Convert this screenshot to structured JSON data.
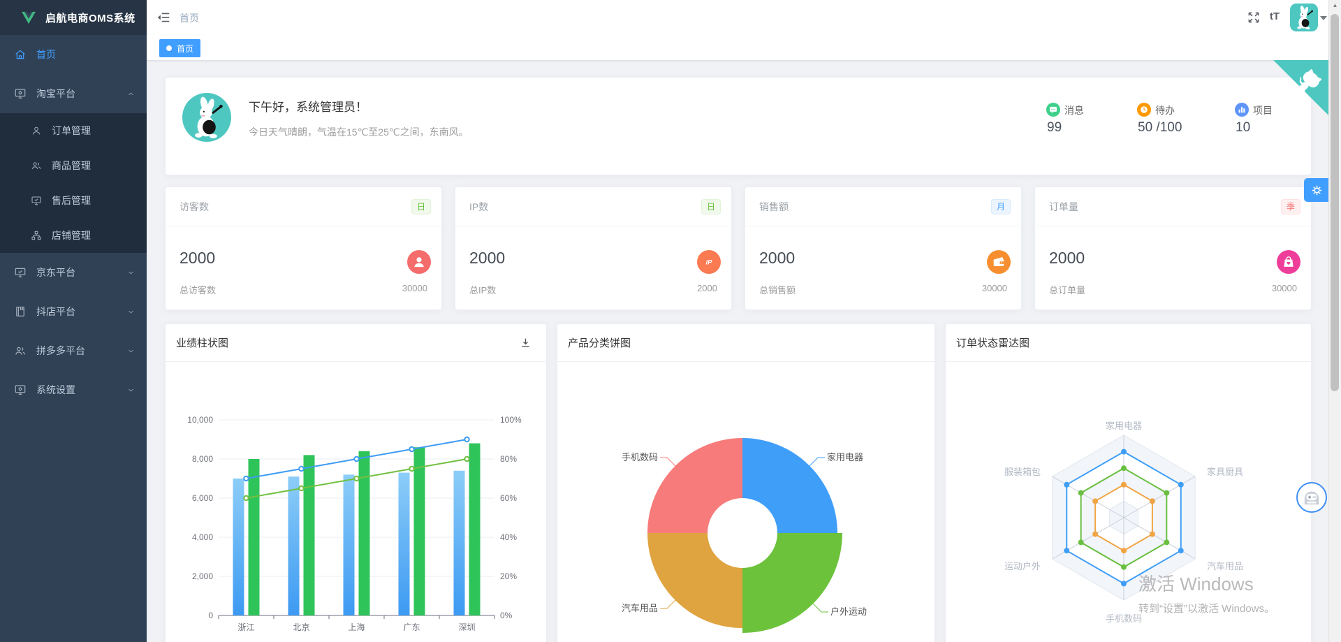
{
  "app": {
    "title": "启航电商OMS系统"
  },
  "colors": {
    "accent": "#409eff",
    "teal": "#4ec7c1",
    "sidebar_bg": "#304156",
    "submenu_bg": "#1f2d3d"
  },
  "sidebar": {
    "logo_title": "启航电商OMS系统",
    "items": [
      {
        "key": "home",
        "label": "首页",
        "icon": "home-icon",
        "active": true
      },
      {
        "key": "taobao",
        "label": "淘宝平台",
        "icon": "monitor-gear-icon",
        "expanded": true,
        "children": [
          {
            "key": "orders",
            "label": "订单管理",
            "icon": "user-icon"
          },
          {
            "key": "products",
            "label": "商品管理",
            "icon": "users-icon"
          },
          {
            "key": "aftersale",
            "label": "售后管理",
            "icon": "monitor-check-icon"
          },
          {
            "key": "shops",
            "label": "店铺管理",
            "icon": "sitemap-icon"
          }
        ]
      },
      {
        "key": "jd",
        "label": "京东平台",
        "icon": "monitor-check-icon",
        "collapsed": true
      },
      {
        "key": "douyin",
        "label": "抖店平台",
        "icon": "book-icon",
        "collapsed": true
      },
      {
        "key": "pdd",
        "label": "拼多多平台",
        "icon": "users-icon",
        "collapsed": true
      },
      {
        "key": "settings",
        "label": "系统设置",
        "icon": "monitor-gear-icon",
        "collapsed": true
      }
    ]
  },
  "navbar": {
    "breadcrumb": "首页",
    "font_icon_label": "tT",
    "icons": [
      "fold-icon",
      "fullscreen-icon",
      "font-size-icon",
      "avatar-rabbit",
      "caret-down-icon"
    ]
  },
  "tabs": [
    {
      "label": "首页",
      "active": true
    }
  ],
  "welcome": {
    "greeting": "下午好，系统管理员！",
    "weather": "今日天气晴朗，气温在15℃至25℃之间，东南风。",
    "stats": [
      {
        "label": "消息",
        "value": "99",
        "icon": "message-icon",
        "color": "#3fd08c"
      },
      {
        "label": "待办",
        "value": "50 /100",
        "icon": "clock-icon",
        "color": "#ff9900"
      },
      {
        "label": "项目",
        "value": "10",
        "icon": "chart-bars-icon",
        "color": "#6095f8"
      }
    ]
  },
  "stat_cards": [
    {
      "title": "访客数",
      "period": "日",
      "period_type": "success",
      "value": "2000",
      "icon": "user-solid-icon",
      "icon_color": "#f56c6c",
      "footer_label": "总访客数",
      "footer_value": "30000"
    },
    {
      "title": "IP数",
      "period": "日",
      "period_type": "success",
      "value": "2000",
      "icon": "ip-icon",
      "icon_color": "#fa7a52",
      "footer_label": "总IP数",
      "footer_value": "2000"
    },
    {
      "title": "销售额",
      "period": "月",
      "period_type": "primary",
      "value": "2000",
      "icon": "wallet-icon",
      "icon_color": "#f78f30",
      "footer_label": "总销售额",
      "footer_value": "30000"
    },
    {
      "title": "订单量",
      "period": "季",
      "period_type": "danger",
      "value": "2000",
      "icon": "bag-icon",
      "icon_color": "#ee3e9a",
      "footer_label": "总订单量",
      "footer_value": "30000"
    }
  ],
  "chart_data": [
    {
      "type": "bar",
      "title": "业绩柱状图",
      "categories": [
        "浙江",
        "北京",
        "上海",
        "广东",
        "深圳"
      ],
      "left_axis": {
        "min": 0,
        "max": 10000,
        "ticks": [
          "0",
          "2,000",
          "4,000",
          "6,000",
          "8,000",
          "10,000"
        ]
      },
      "right_axis": {
        "min": 0,
        "max": 100,
        "ticks": [
          "0%",
          "20%",
          "40%",
          "60%",
          "80%",
          "100%"
        ]
      },
      "grid": true,
      "legend": "none",
      "series": [
        {
          "kind": "bar",
          "axis": "left",
          "values": [
            7000,
            7100,
            7200,
            7300,
            7400
          ],
          "color": "#4aa4f2",
          "gradient": [
            "#8ccdf8",
            "#3d9af2"
          ]
        },
        {
          "kind": "bar",
          "axis": "left",
          "values": [
            8000,
            8200,
            8400,
            8600,
            8800
          ],
          "color": "#2fc45a"
        },
        {
          "kind": "line",
          "axis": "right",
          "values": [
            70,
            75,
            80,
            85,
            90
          ],
          "color": "#3f9cf3"
        },
        {
          "kind": "line",
          "axis": "right",
          "values": [
            60,
            65,
            70,
            75,
            80
          ],
          "color": "#72c040"
        }
      ]
    },
    {
      "type": "pie",
      "title": "产品分类饼图",
      "donut": true,
      "slices": [
        {
          "label": "家用电器",
          "value": 25,
          "color": "#3f9ef8"
        },
        {
          "label": "户外运动",
          "value": 25,
          "color": "#6cc23a"
        },
        {
          "label": "汽车用品",
          "value": 25,
          "color": "#dfa33f"
        },
        {
          "label": "手机数码",
          "value": 25,
          "color": "#f87b7b"
        }
      ]
    },
    {
      "type": "radar",
      "title": "订单状态雷达图",
      "indicators": [
        "家用电器",
        "家具厨具",
        "汽车用品",
        "手机数码",
        "运动户外",
        "服装箱包"
      ],
      "max": 100,
      "series": [
        {
          "values": [
            80,
            80,
            80,
            80,
            80,
            80
          ],
          "color": "#3e9ef7"
        },
        {
          "values": [
            60,
            60,
            60,
            60,
            60,
            60
          ],
          "color": "#6abf40"
        },
        {
          "values": [
            40,
            40,
            40,
            40,
            40,
            40
          ],
          "color": "#f0a444"
        }
      ]
    }
  ],
  "watermark": {
    "line1": "激活 Windows",
    "line2": "转到“设置”以激活 Windows。"
  }
}
